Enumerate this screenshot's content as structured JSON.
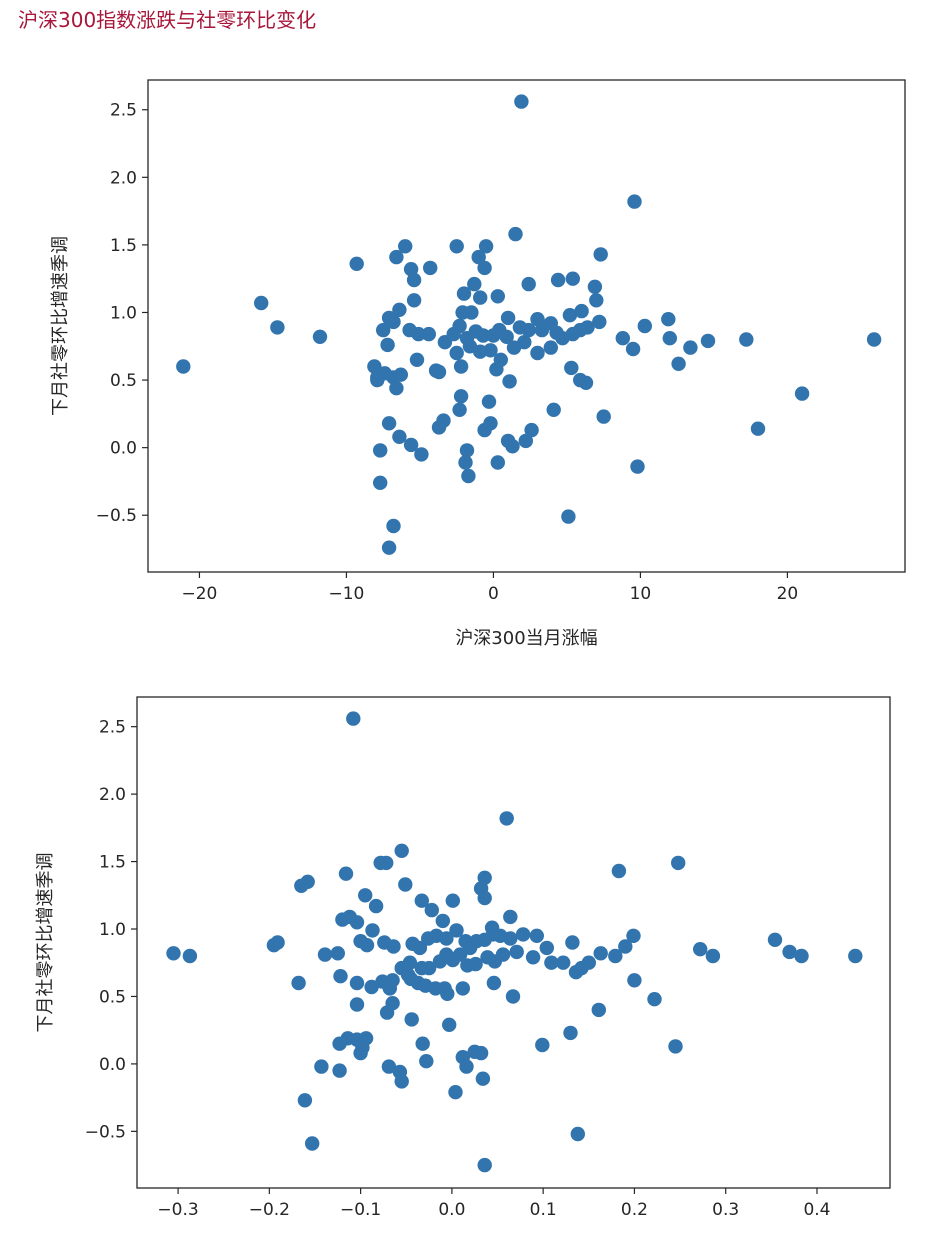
{
  "page": {
    "heading": "沪深300指数涨跌与社零环比变化"
  },
  "colors": {
    "heading": "#a8173a",
    "marker": "#3274ad",
    "axis": "#262626"
  },
  "chart_data": [
    {
      "type": "scatter",
      "title": "",
      "xlabel": "沪深300当月涨幅",
      "ylabel": "下月社零环比增速季调",
      "xlim": [
        -23.5,
        28
      ],
      "ylim": [
        -0.92,
        2.72
      ],
      "xticks": [
        -20,
        -10,
        0,
        10,
        20
      ],
      "xtick_labels": [
        "−20",
        "−10",
        "0",
        "10",
        "20"
      ],
      "yticks": [
        -0.5,
        0,
        0.5,
        1,
        1.5,
        2,
        2.5
      ],
      "ytick_labels": [
        "−0.5",
        "0.0",
        "0.5",
        "1.0",
        "1.5",
        "2.0",
        "2.5"
      ],
      "grid": false,
      "points": [
        [
          1.9,
          2.56
        ],
        [
          9.6,
          1.82
        ],
        [
          -6.0,
          1.49
        ],
        [
          -2.5,
          1.49
        ],
        [
          -0.5,
          1.49
        ],
        [
          1.5,
          1.58
        ],
        [
          -6.6,
          1.41
        ],
        [
          -1.0,
          1.41
        ],
        [
          7.3,
          1.43
        ],
        [
          -9.3,
          1.36
        ],
        [
          -5.6,
          1.32
        ],
        [
          -4.3,
          1.33
        ],
        [
          -0.6,
          1.33
        ],
        [
          4.4,
          1.24
        ],
        [
          5.4,
          1.25
        ],
        [
          -5.4,
          1.24
        ],
        [
          -1.3,
          1.21
        ],
        [
          2.4,
          1.21
        ],
        [
          6.9,
          1.19
        ],
        [
          -2.0,
          1.14
        ],
        [
          -15.8,
          1.07
        ],
        [
          -5.4,
          1.09
        ],
        [
          -0.9,
          1.11
        ],
        [
          0.3,
          1.12
        ],
        [
          -1.5,
          1.0
        ],
        [
          -2.1,
          1.0
        ],
        [
          6.0,
          1.01
        ],
        [
          7.0,
          1.09
        ],
        [
          3.0,
          0.95
        ],
        [
          5.2,
          0.98
        ],
        [
          -14.7,
          0.89
        ],
        [
          -11.8,
          0.82
        ],
        [
          -7.5,
          0.87
        ],
        [
          -6.4,
          1.02
        ],
        [
          -6.8,
          0.93
        ],
        [
          -7.1,
          0.96
        ],
        [
          -5.7,
          0.87
        ],
        [
          -5.1,
          0.84
        ],
        [
          -4.4,
          0.84
        ],
        [
          -3.3,
          0.78
        ],
        [
          -2.7,
          0.84
        ],
        [
          -2.3,
          0.9
        ],
        [
          -1.8,
          0.81
        ],
        [
          -1.2,
          0.86
        ],
        [
          -0.7,
          0.83
        ],
        [
          0.0,
          0.83
        ],
        [
          0.4,
          0.87
        ],
        [
          0.9,
          0.82
        ],
        [
          1.8,
          0.89
        ],
        [
          2.4,
          0.87
        ],
        [
          3.3,
          0.87
        ],
        [
          3.9,
          0.92
        ],
        [
          4.3,
          0.85
        ],
        [
          4.7,
          0.81
        ],
        [
          5.4,
          0.84
        ],
        [
          5.9,
          0.87
        ],
        [
          6.4,
          0.89
        ],
        [
          7.2,
          0.93
        ],
        [
          8.8,
          0.81
        ],
        [
          9.5,
          0.73
        ],
        [
          10.3,
          0.9
        ],
        [
          11.9,
          0.95
        ],
        [
          12.0,
          0.81
        ],
        [
          13.4,
          0.74
        ],
        [
          14.6,
          0.79
        ],
        [
          17.2,
          0.8
        ],
        [
          25.9,
          0.8
        ],
        [
          -21.1,
          0.6
        ],
        [
          -8.1,
          0.6
        ],
        [
          -7.9,
          0.5
        ],
        [
          -7.4,
          0.55
        ],
        [
          -6.8,
          0.52
        ],
        [
          -6.6,
          0.44
        ],
        [
          -6.3,
          0.54
        ],
        [
          -5.2,
          0.65
        ],
        [
          -3.7,
          0.56
        ],
        [
          -3.9,
          0.57
        ],
        [
          -2.5,
          0.7
        ],
        [
          -2.2,
          0.6
        ],
        [
          -1.6,
          0.75
        ],
        [
          -0.9,
          0.71
        ],
        [
          -0.2,
          0.72
        ],
        [
          0.2,
          0.58
        ],
        [
          0.5,
          0.65
        ],
        [
          1.1,
          0.49
        ],
        [
          1.4,
          0.74
        ],
        [
          2.1,
          0.78
        ],
        [
          3.0,
          0.7
        ],
        [
          3.9,
          0.74
        ],
        [
          5.3,
          0.59
        ],
        [
          6.3,
          0.48
        ],
        [
          -2.2,
          0.38
        ],
        [
          -2.3,
          0.28
        ],
        [
          -0.3,
          0.34
        ],
        [
          4.1,
          0.28
        ],
        [
          7.5,
          0.23
        ],
        [
          -7.9,
          0.52
        ],
        [
          -7.2,
          0.76
        ],
        [
          -7.1,
          0.18
        ],
        [
          -6.4,
          0.08
        ],
        [
          -5.6,
          0.02
        ],
        [
          -4.9,
          -0.05
        ],
        [
          -3.7,
          0.15
        ],
        [
          -3.4,
          0.2
        ],
        [
          -1.8,
          -0.02
        ],
        [
          -1.9,
          -0.11
        ],
        [
          -1.7,
          -0.21
        ],
        [
          -0.6,
          0.13
        ],
        [
          -0.2,
          0.18
        ],
        [
          0.3,
          -0.11
        ],
        [
          1.0,
          0.05
        ],
        [
          1.3,
          0.01
        ],
        [
          2.2,
          0.05
        ],
        [
          2.6,
          0.13
        ],
        [
          -7.7,
          -0.02
        ],
        [
          -7.7,
          -0.26
        ],
        [
          -6.8,
          -0.58
        ],
        [
          -7.1,
          -0.74
        ],
        [
          5.1,
          -0.51
        ],
        [
          9.8,
          -0.14
        ],
        [
          18.0,
          0.14
        ],
        [
          21.0,
          0.4
        ],
        [
          12.6,
          0.62
        ],
        [
          5.9,
          0.5
        ],
        [
          1.0,
          0.96
        ]
      ]
    },
    {
      "type": "scatter",
      "title": "",
      "xlabel": "",
      "ylabel": "下月社零环比增速季调",
      "xlim": [
        -0.345,
        0.48
      ],
      "ylim": [
        -0.92,
        2.72
      ],
      "xticks": [
        -0.3,
        -0.2,
        -0.1,
        0.0,
        0.1,
        0.2,
        0.3,
        0.4
      ],
      "xtick_labels": [
        "−0.3",
        "−0.2",
        "−0.1",
        "0.0",
        "0.1",
        "0.2",
        "0.3",
        "0.4"
      ],
      "yticks": [
        -0.5,
        0,
        0.5,
        1,
        1.5,
        2,
        2.5
      ],
      "ytick_labels": [
        "−0.5",
        "0.0",
        "0.5",
        "1.0",
        "1.5",
        "2.0",
        "2.5"
      ],
      "grid": false,
      "points": [
        [
          -0.108,
          2.56
        ],
        [
          0.06,
          1.82
        ],
        [
          -0.055,
          1.58
        ],
        [
          -0.072,
          1.49
        ],
        [
          -0.078,
          1.49
        ],
        [
          0.248,
          1.49
        ],
        [
          -0.116,
          1.41
        ],
        [
          0.036,
          1.38
        ],
        [
          0.183,
          1.43
        ],
        [
          -0.165,
          1.32
        ],
        [
          -0.158,
          1.35
        ],
        [
          -0.051,
          1.33
        ],
        [
          0.032,
          1.3
        ],
        [
          -0.095,
          1.25
        ],
        [
          -0.033,
          1.21
        ],
        [
          0.001,
          1.21
        ],
        [
          0.036,
          1.23
        ],
        [
          -0.083,
          1.17
        ],
        [
          -0.022,
          1.14
        ],
        [
          -0.12,
          1.07
        ],
        [
          -0.112,
          1.09
        ],
        [
          -0.104,
          1.05
        ],
        [
          -0.01,
          1.06
        ],
        [
          0.064,
          1.09
        ],
        [
          0.044,
          1.01
        ],
        [
          -0.195,
          0.88
        ],
        [
          -0.191,
          0.9
        ],
        [
          -0.125,
          0.82
        ],
        [
          -0.139,
          0.81
        ],
        [
          -0.1,
          0.91
        ],
        [
          -0.093,
          0.88
        ],
        [
          -0.087,
          0.99
        ],
        [
          -0.074,
          0.9
        ],
        [
          -0.064,
          0.87
        ],
        [
          -0.043,
          0.89
        ],
        [
          -0.035,
          0.86
        ],
        [
          -0.026,
          0.93
        ],
        [
          -0.017,
          0.95
        ],
        [
          -0.006,
          0.93
        ],
        [
          0.005,
          0.99
        ],
        [
          0.015,
          0.91
        ],
        [
          0.027,
          0.91
        ],
        [
          0.036,
          0.92
        ],
        [
          0.045,
          0.96
        ],
        [
          0.053,
          0.95
        ],
        [
          0.064,
          0.93
        ],
        [
          0.078,
          0.96
        ],
        [
          0.093,
          0.95
        ],
        [
          0.104,
          0.86
        ],
        [
          0.132,
          0.9
        ],
        [
          0.19,
          0.87
        ],
        [
          0.199,
          0.95
        ],
        [
          0.272,
          0.85
        ],
        [
          0.286,
          0.8
        ],
        [
          0.354,
          0.92
        ],
        [
          0.37,
          0.83
        ],
        [
          0.383,
          0.8
        ],
        [
          0.442,
          0.8
        ],
        [
          -0.305,
          0.82
        ],
        [
          -0.287,
          0.8
        ],
        [
          -0.168,
          0.6
        ],
        [
          -0.122,
          0.65
        ],
        [
          -0.104,
          0.6
        ],
        [
          -0.088,
          0.57
        ],
        [
          -0.076,
          0.61
        ],
        [
          -0.068,
          0.56
        ],
        [
          -0.055,
          0.71
        ],
        [
          -0.046,
          0.75
        ],
        [
          -0.033,
          0.71
        ],
        [
          -0.025,
          0.71
        ],
        [
          -0.013,
          0.76
        ],
        [
          -0.006,
          0.81
        ],
        [
          0.001,
          0.77
        ],
        [
          0.009,
          0.81
        ],
        [
          0.017,
          0.73
        ],
        [
          0.026,
          0.74
        ],
        [
          0.039,
          0.79
        ],
        [
          0.047,
          0.76
        ],
        [
          0.056,
          0.81
        ],
        [
          0.071,
          0.83
        ],
        [
          0.089,
          0.79
        ],
        [
          0.109,
          0.75
        ],
        [
          0.122,
          0.75
        ],
        [
          0.136,
          0.68
        ],
        [
          0.142,
          0.71
        ],
        [
          0.15,
          0.75
        ],
        [
          0.163,
          0.82
        ],
        [
          0.179,
          0.8
        ],
        [
          -0.065,
          0.62
        ],
        [
          -0.048,
          0.66
        ],
        [
          -0.037,
          0.6
        ],
        [
          -0.029,
          0.58
        ],
        [
          -0.018,
          0.56
        ],
        [
          -0.008,
          0.56
        ],
        [
          -0.005,
          0.52
        ],
        [
          0.012,
          0.56
        ],
        [
          0.046,
          0.6
        ],
        [
          0.067,
          0.5
        ],
        [
          0.2,
          0.62
        ],
        [
          0.222,
          0.48
        ],
        [
          -0.104,
          0.44
        ],
        [
          -0.071,
          0.38
        ],
        [
          -0.065,
          0.45
        ],
        [
          -0.044,
          0.33
        ],
        [
          -0.003,
          0.29
        ],
        [
          0.13,
          0.23
        ],
        [
          0.161,
          0.4
        ],
        [
          -0.123,
          0.15
        ],
        [
          -0.114,
          0.19
        ],
        [
          -0.104,
          0.18
        ],
        [
          -0.098,
          0.12
        ],
        [
          -0.094,
          0.19
        ],
        [
          -0.069,
          -0.02
        ],
        [
          -0.057,
          -0.06
        ],
        [
          -0.055,
          -0.13
        ],
        [
          -0.032,
          0.15
        ],
        [
          -0.028,
          0.02
        ],
        [
          0.012,
          0.05
        ],
        [
          0.016,
          -0.02
        ],
        [
          0.025,
          0.09
        ],
        [
          0.032,
          0.08
        ],
        [
          0.099,
          0.14
        ],
        [
          0.034,
          -0.11
        ],
        [
          0.004,
          -0.21
        ],
        [
          -0.123,
          -0.05
        ],
        [
          -0.143,
          -0.02
        ],
        [
          -0.161,
          -0.27
        ],
        [
          -0.153,
          -0.59
        ],
        [
          0.138,
          -0.52
        ],
        [
          0.036,
          -0.75
        ],
        [
          0.245,
          0.13
        ],
        [
          -0.1,
          0.08
        ],
        [
          0.02,
          0.86
        ],
        [
          -0.045,
          0.63
        ]
      ]
    }
  ]
}
